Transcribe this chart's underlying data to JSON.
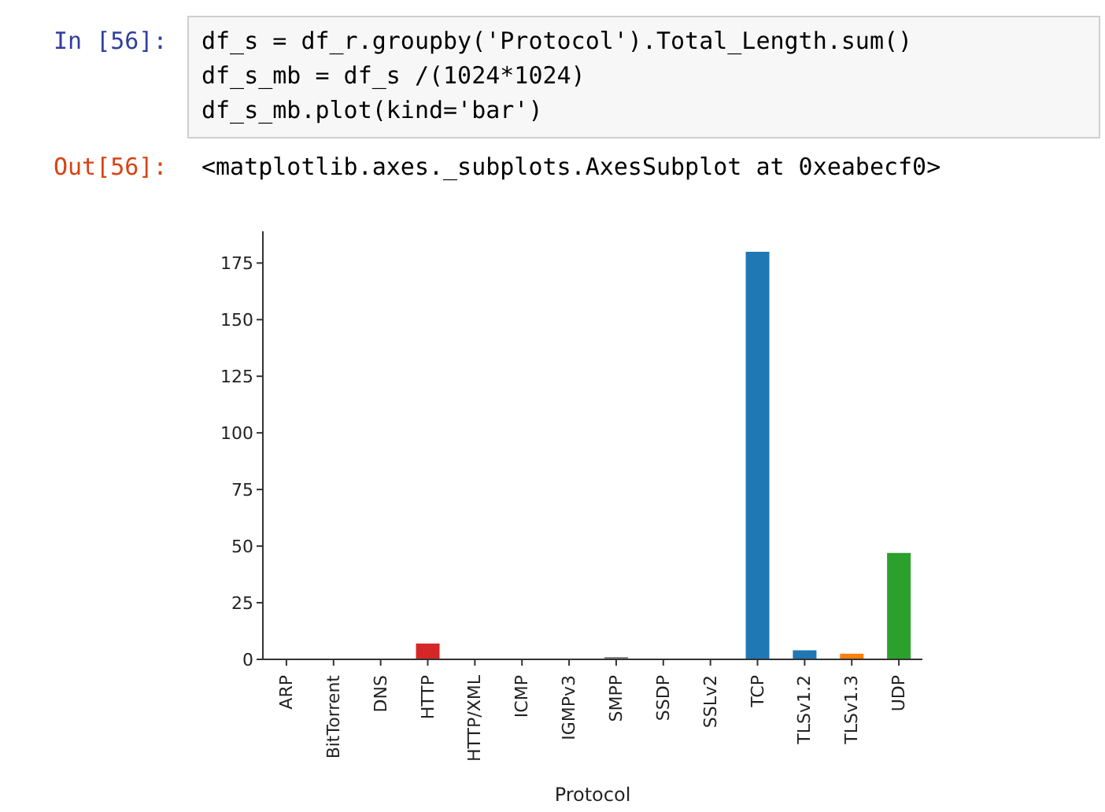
{
  "chart_data": {
    "type": "bar",
    "xlabel": "Protocol",
    "annotations": [
      "In [56]:",
      "df_s = df_r.groupby('Protocol').Total_Length.sum()",
      "df_s_mb = df_s /(1024*1024)",
      "df_s_mb.plot(kind='bar')",
      "Out[56]:",
      "<matplotlib.axes._subplots.AxesSubplot at 0xeabecf0>"
    ],
    "categories": [
      "ARP",
      "BitTorrent",
      "DNS",
      "HTTP",
      "HTTP/XML",
      "ICMP",
      "IGMPv3",
      "SMPP",
      "SSDP",
      "SSLv2",
      "TCP",
      "TLSv1.2",
      "TLSv1.3",
      "UDP"
    ],
    "values": [
      0,
      0,
      0,
      7,
      0,
      0,
      0,
      1,
      0,
      0,
      180,
      4,
      2.5,
      47
    ],
    "colors": [
      "#1f77b4",
      "#ff7f0e",
      "#2ca02c",
      "#d62728",
      "#9467bd",
      "#8c564b",
      "#e377c2",
      "#7f7f7f",
      "#bcbd22",
      "#17becf",
      "#1f77b4",
      "#1f77b4",
      "#ff7f0e",
      "#2ca02c"
    ],
    "ylim": [
      0,
      189
    ],
    "yticks": [
      0,
      25,
      50,
      75,
      100,
      125,
      150,
      175
    ],
    "grid": false,
    "legend": false
  }
}
